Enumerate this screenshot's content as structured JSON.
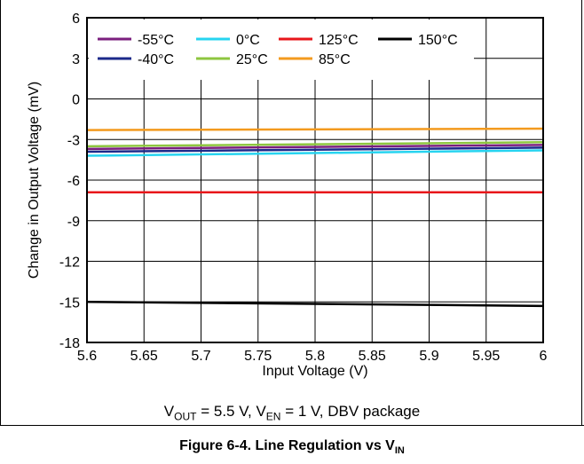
{
  "chart_data": {
    "type": "line",
    "xlabel": "Input Voltage (V)",
    "ylabel": "Change in Output Voltage (mV)",
    "xlim": [
      5.6,
      6.0
    ],
    "ylim": [
      -18,
      6
    ],
    "x_ticks": [
      "5.6",
      "5.65",
      "5.7",
      "5.75",
      "5.8",
      "5.85",
      "5.9",
      "5.95",
      "6"
    ],
    "y_ticks": [
      "6",
      "3",
      "0",
      "-3",
      "-6",
      "-9",
      "-12",
      "-15",
      "-18"
    ],
    "grid": true,
    "legend_position": "top-left",
    "series": [
      {
        "name": "-55°C",
        "color": "#7b1f7e",
        "x": [
          5.6,
          6.0
        ],
        "y": [
          -3.7,
          -3.4
        ]
      },
      {
        "name": "-40°C",
        "color": "#1c2a8a",
        "x": [
          5.6,
          6.0
        ],
        "y": [
          -3.9,
          -3.6
        ]
      },
      {
        "name": "0°C",
        "color": "#27d4f0",
        "x": [
          5.6,
          6.0
        ],
        "y": [
          -4.2,
          -3.8
        ]
      },
      {
        "name": "25°C",
        "color": "#8dc63f",
        "x": [
          5.6,
          6.0
        ],
        "y": [
          -3.5,
          -3.2
        ]
      },
      {
        "name": "125°C",
        "color": "#e8161a",
        "x": [
          5.6,
          6.0
        ],
        "y": [
          -6.9,
          -6.9
        ]
      },
      {
        "name": "85°C",
        "color": "#f39a1e",
        "x": [
          5.6,
          6.0
        ],
        "y": [
          -2.3,
          -2.2
        ]
      },
      {
        "name": "150°C",
        "color": "#000000",
        "x": [
          5.6,
          6.0
        ],
        "y": [
          -15.0,
          -15.3
        ]
      }
    ],
    "legend_rows": [
      [
        "-55°C",
        "0°C",
        "125°C",
        "150°C"
      ],
      [
        "-40°C",
        "25°C",
        "85°C"
      ]
    ]
  },
  "conditions": {
    "vout_base": "V",
    "vout_sub": "OUT",
    "vout_value": " = 5.5 V, ",
    "ven_base": "V",
    "ven_sub": "EN",
    "ven_value": " = 1 V, DBV package"
  },
  "caption": {
    "text": "Figure 6-4. Line Regulation vs V",
    "sub": "IN"
  }
}
